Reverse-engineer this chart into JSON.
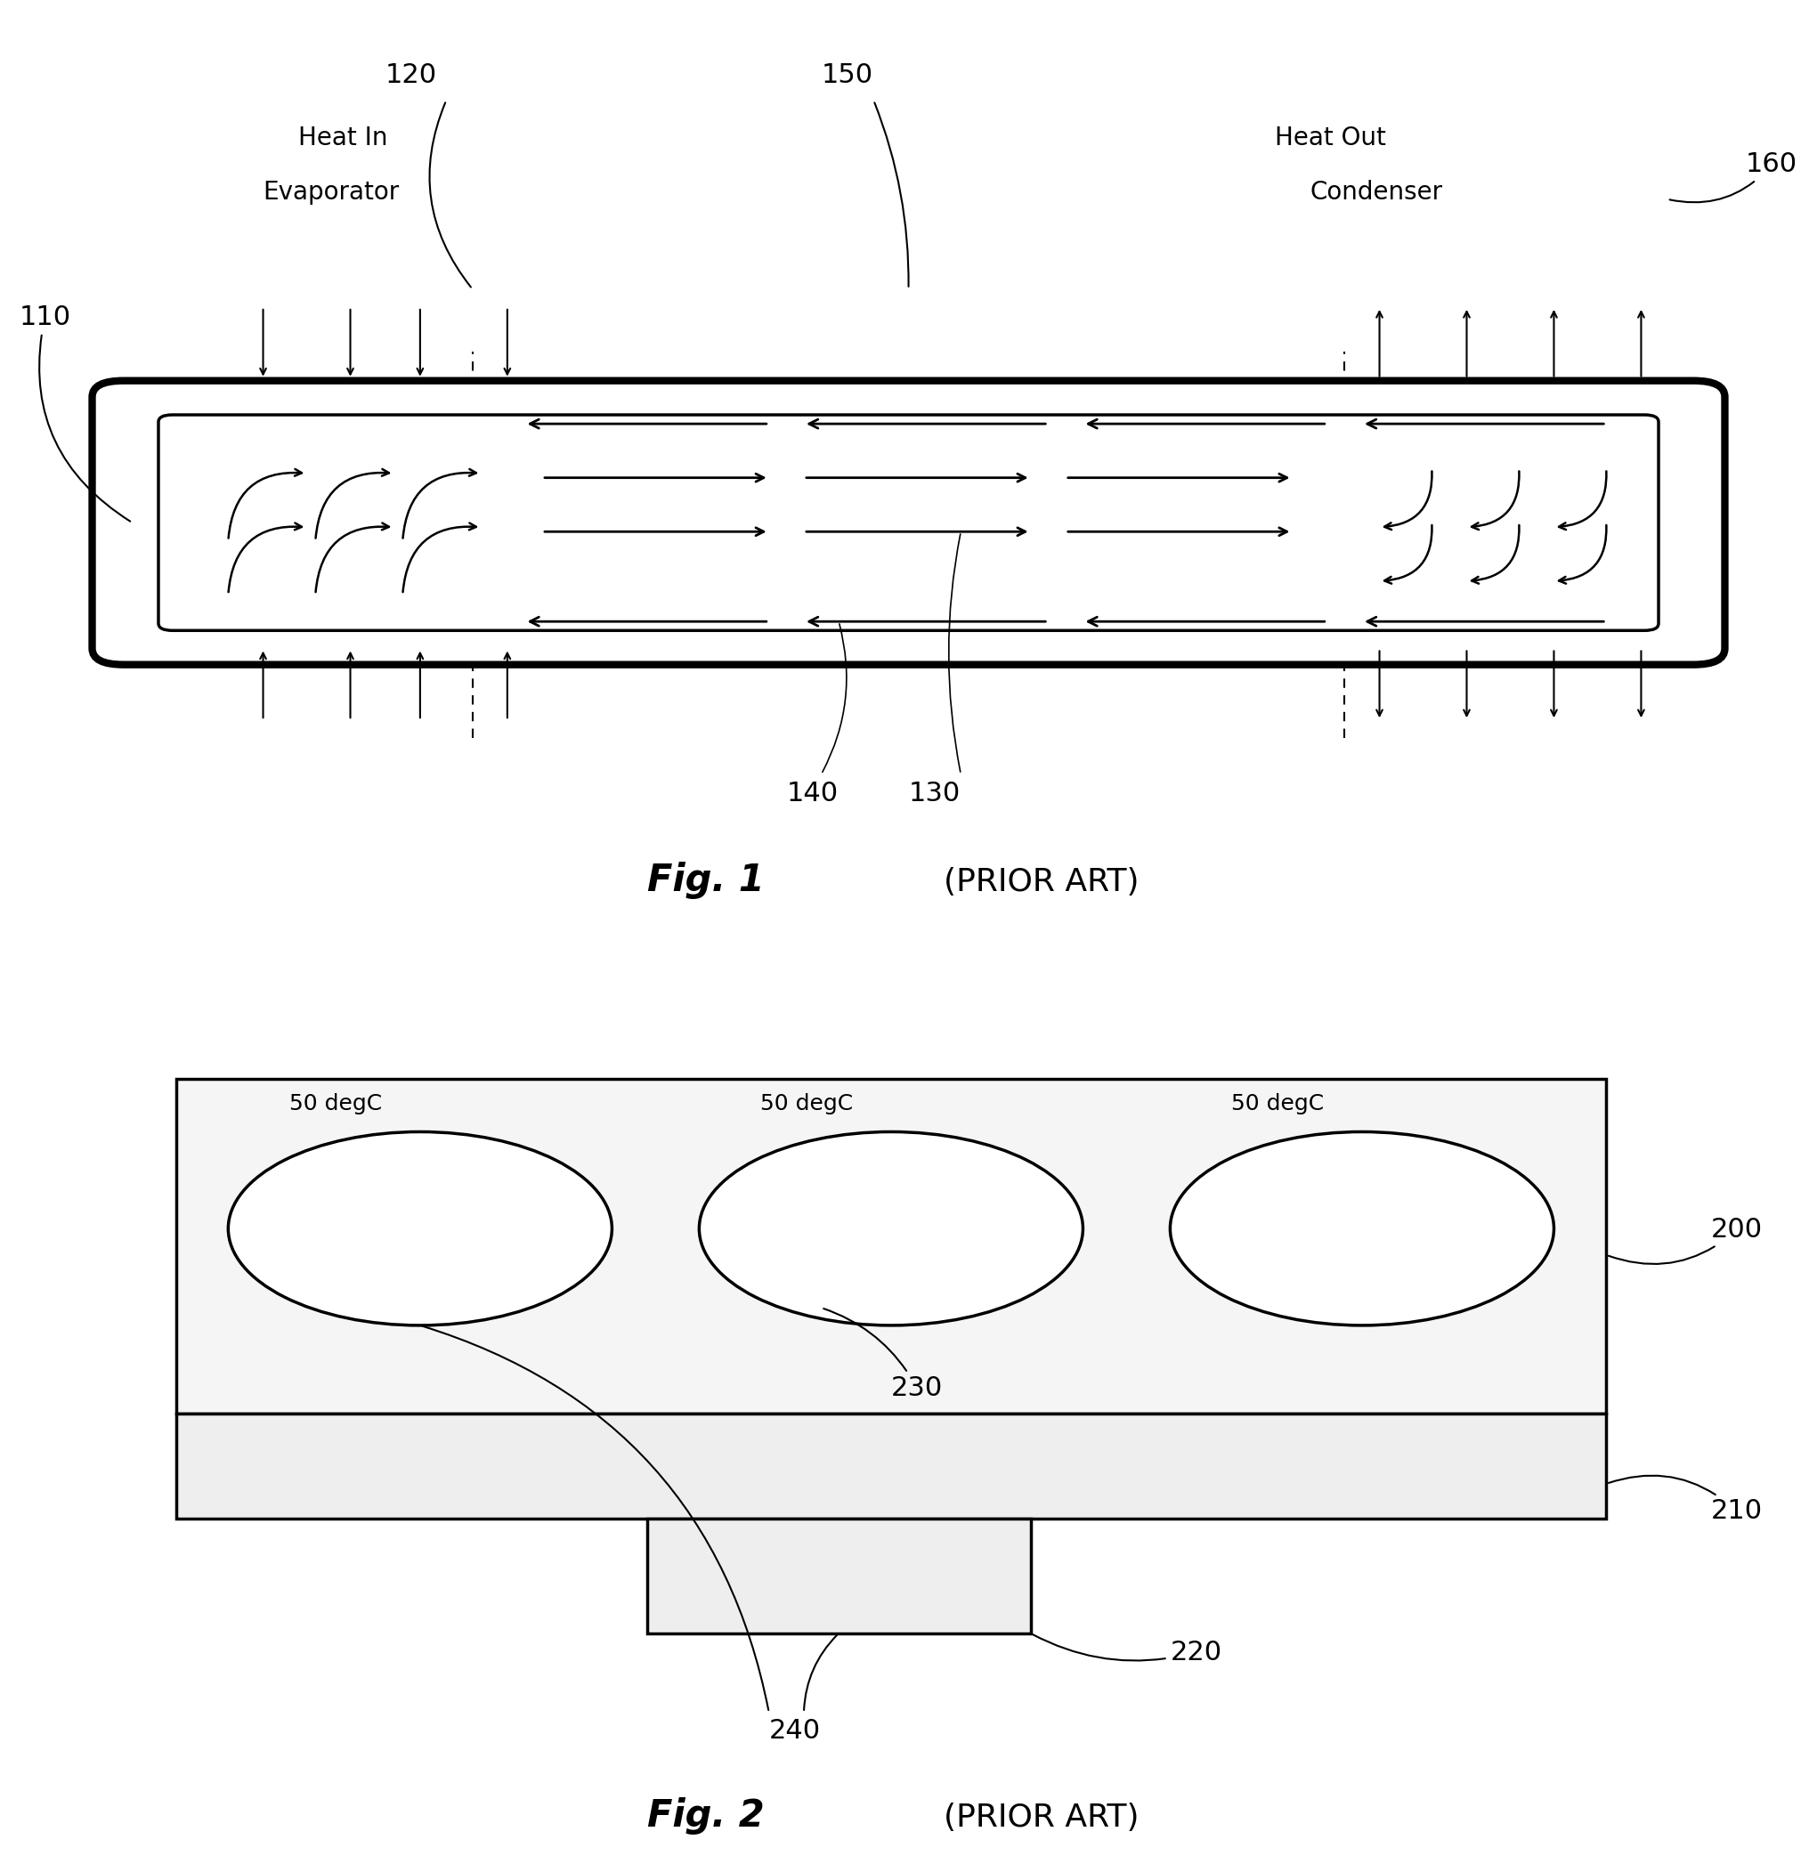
{
  "fig_width": 20.41,
  "fig_height": 21.03,
  "bg_color": "#ffffff",
  "fig1": {
    "title": "Fig. 1",
    "subtitle": "(PRIOR ART)",
    "label_110": "110",
    "label_120": "120",
    "label_130": "130",
    "label_140": "140",
    "label_150": "150",
    "label_160": "160",
    "text_heat_in": "Heat In",
    "text_evaporator": "Evaporator",
    "text_heat_out": "Heat Out",
    "text_condenser": "Condenser"
  },
  "fig2": {
    "title": "Fig. 2",
    "subtitle": "(PRIOR ART)",
    "label_200": "200",
    "label_210": "210",
    "label_220": "220",
    "label_230": "230",
    "label_240": "240",
    "temp_label": "50 degC"
  }
}
